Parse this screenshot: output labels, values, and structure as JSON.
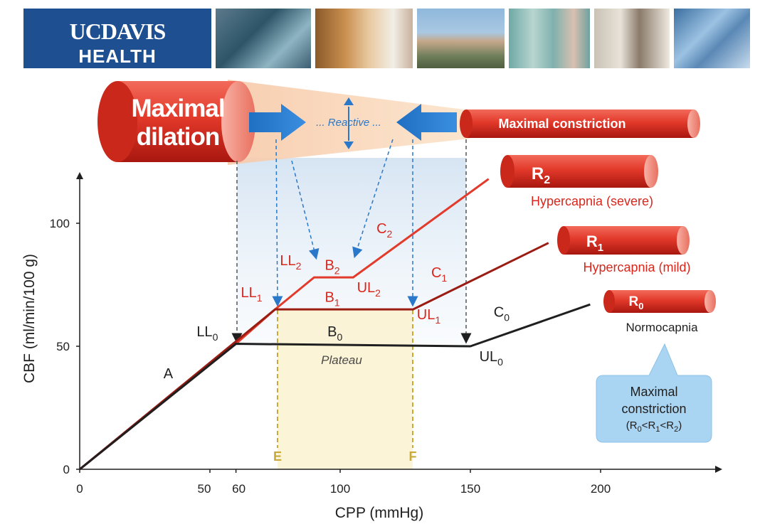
{
  "header": {
    "logo_line1": "UCDAVIS",
    "logo_line2": "HEALTH",
    "photos": [
      "photo-surgery-team",
      "photo-boy-and-doctor",
      "photo-hospital-building",
      "photo-nursing-staff",
      "photo-lab-microscope",
      "photo-glass-building"
    ]
  },
  "diagram": {
    "dilation_label_1": "Maximal",
    "dilation_label_2": "dilation",
    "reactive_label": "... Reactive ...",
    "constriction_label": "Maximal constriction",
    "vessels": [
      {
        "id": "R2",
        "label": "R",
        "sub": "2",
        "caption": "Hypercapnia (severe)"
      },
      {
        "id": "R1",
        "label": "R",
        "sub": "1",
        "caption": "Hypercapnia (mild)"
      },
      {
        "id": "R0",
        "label": "R",
        "sub": "0",
        "caption": "Normocapnia"
      }
    ],
    "callout": {
      "line1": "Maximal",
      "line2": "constriction",
      "line3_parts": [
        "(R",
        "0",
        "<R",
        "1",
        "<R",
        "2",
        ")"
      ]
    },
    "colors": {
      "curve_R0": "#1f1f1f",
      "curve_R1": "#9b1c13",
      "curve_R2": "#e23a2b",
      "label_red": "#d8271c",
      "plateau_fill": "#fbf0c9",
      "plateau_border": "#c8a93a",
      "guide_blue": "#2a78c9",
      "callout_bg": "#a9d4f2"
    }
  },
  "chart_data": {
    "type": "line",
    "xlabel": "CPP (mmHg)",
    "ylabel": "CBF (ml/min/100 g)",
    "xlim": [
      0,
      245
    ],
    "ylim": [
      0,
      132
    ],
    "x_ticks": [
      0,
      50,
      60,
      100,
      150,
      200
    ],
    "y_ticks": [
      0,
      50,
      100
    ],
    "series": [
      {
        "name": "R0",
        "x": [
          0,
          60,
          150,
          196
        ],
        "y": [
          0,
          51,
          50,
          67
        ]
      },
      {
        "name": "R1",
        "x": [
          0,
          75,
          128,
          180
        ],
        "y": [
          0,
          65,
          65,
          92
        ]
      },
      {
        "name": "R2",
        "x": [
          0,
          60,
          75,
          90,
          105,
          157
        ],
        "y": [
          0,
          51,
          65,
          78,
          78,
          118
        ]
      }
    ],
    "plateau": {
      "x": [
        75,
        128
      ],
      "label": "Plateau",
      "left_label": "E",
      "right_label": "F"
    },
    "point_labels": [
      {
        "text": "A",
        "sub": "",
        "x": 34,
        "y": 37,
        "color": "#1f1f1f"
      },
      {
        "text": "LL",
        "sub": "0",
        "x": 49,
        "y": 54,
        "color": "#1f1f1f"
      },
      {
        "text": "B",
        "sub": "0",
        "x": 98,
        "y": 54,
        "color": "#1f1f1f"
      },
      {
        "text": "UL",
        "sub": "0",
        "x": 158,
        "y": 44,
        "color": "#1f1f1f"
      },
      {
        "text": "C",
        "sub": "0",
        "x": 162,
        "y": 62,
        "color": "#1f1f1f"
      },
      {
        "text": "LL",
        "sub": "1",
        "x": 66,
        "y": 70,
        "color": "#d8271c"
      },
      {
        "text": "B",
        "sub": "1",
        "x": 97,
        "y": 68,
        "color": "#d8271c"
      },
      {
        "text": "UL",
        "sub": "1",
        "x": 134,
        "y": 61,
        "color": "#d8271c"
      },
      {
        "text": "C",
        "sub": "1",
        "x": 138,
        "y": 78,
        "color": "#d8271c"
      },
      {
        "text": "LL",
        "sub": "2",
        "x": 81,
        "y": 83,
        "color": "#d8271c"
      },
      {
        "text": "B",
        "sub": "2",
        "x": 97,
        "y": 81,
        "color": "#d8271c"
      },
      {
        "text": "UL",
        "sub": "2",
        "x": 111,
        "y": 72,
        "color": "#d8271c"
      },
      {
        "text": "C",
        "sub": "2",
        "x": 117,
        "y": 96,
        "color": "#d8271c"
      }
    ]
  }
}
